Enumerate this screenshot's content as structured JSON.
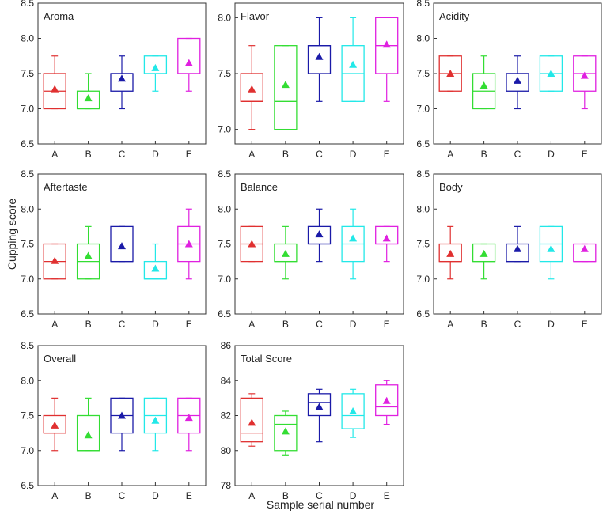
{
  "figure": {
    "y_axis_label": "Cupping score",
    "x_axis_label": "Sample serial number",
    "series_colors": {
      "A": "#e03030",
      "B": "#33dd33",
      "C": "#1a1aa8",
      "D": "#22e8e8",
      "E": "#e020e0"
    }
  },
  "chart_data": [
    {
      "type": "box",
      "title": "Aroma",
      "categories": [
        "A",
        "B",
        "C",
        "D",
        "E"
      ],
      "ylim": [
        6.5,
        8.5
      ],
      "yticks": [
        "6.5",
        "7.0",
        "7.5",
        "8.0",
        "8.5"
      ],
      "boxes": [
        {
          "cat": "A",
          "min": 7.0,
          "q1": 7.0,
          "median": 7.25,
          "q3": 7.5,
          "max": 7.75,
          "mean": 7.28
        },
        {
          "cat": "B",
          "min": 7.0,
          "q1": 7.0,
          "median": 7.0,
          "q3": 7.25,
          "max": 7.5,
          "mean": 7.15
        },
        {
          "cat": "C",
          "min": 7.0,
          "q1": 7.25,
          "median": 7.5,
          "q3": 7.5,
          "max": 7.75,
          "mean": 7.43
        },
        {
          "cat": "D",
          "min": 7.25,
          "q1": 7.5,
          "median": 7.5,
          "q3": 7.75,
          "max": 7.75,
          "mean": 7.58
        },
        {
          "cat": "E",
          "min": 7.25,
          "q1": 7.5,
          "median": 7.5,
          "q3": 8.0,
          "max": 8.0,
          "mean": 7.65
        }
      ]
    },
    {
      "type": "box",
      "title": "Flavor",
      "categories": [
        "A",
        "B",
        "C",
        "D",
        "E"
      ],
      "ylim": [
        6.87,
        8.13
      ],
      "yticks": [
        "7.0",
        "7.5",
        "8.0"
      ],
      "boxes": [
        {
          "cat": "A",
          "min": 7.0,
          "q1": 7.25,
          "median": 7.25,
          "q3": 7.5,
          "max": 7.75,
          "mean": 7.36
        },
        {
          "cat": "B",
          "min": 7.0,
          "q1": 7.0,
          "median": 7.25,
          "q3": 7.75,
          "max": 7.75,
          "mean": 7.4
        },
        {
          "cat": "C",
          "min": 7.25,
          "q1": 7.5,
          "median": 7.75,
          "q3": 7.75,
          "max": 8.0,
          "mean": 7.65
        },
        {
          "cat": "D",
          "min": 7.25,
          "q1": 7.25,
          "median": 7.5,
          "q3": 7.75,
          "max": 8.0,
          "mean": 7.58
        },
        {
          "cat": "E",
          "min": 7.25,
          "q1": 7.5,
          "median": 7.75,
          "q3": 8.0,
          "max": 8.0,
          "mean": 7.76
        }
      ]
    },
    {
      "type": "box",
      "title": "Acidity",
      "categories": [
        "A",
        "B",
        "C",
        "D",
        "E"
      ],
      "ylim": [
        6.5,
        8.5
      ],
      "yticks": [
        "6.5",
        "7.0",
        "7.5",
        "8.0",
        "8.5"
      ],
      "boxes": [
        {
          "cat": "A",
          "min": 7.25,
          "q1": 7.25,
          "median": 7.5,
          "q3": 7.75,
          "max": 7.75,
          "mean": 7.5
        },
        {
          "cat": "B",
          "min": 7.0,
          "q1": 7.0,
          "median": 7.25,
          "q3": 7.5,
          "max": 7.75,
          "mean": 7.33
        },
        {
          "cat": "C",
          "min": 7.0,
          "q1": 7.25,
          "median": 7.5,
          "q3": 7.5,
          "max": 7.75,
          "mean": 7.4
        },
        {
          "cat": "D",
          "min": 7.25,
          "q1": 7.25,
          "median": 7.5,
          "q3": 7.75,
          "max": 7.75,
          "mean": 7.5
        },
        {
          "cat": "E",
          "min": 7.0,
          "q1": 7.25,
          "median": 7.5,
          "q3": 7.75,
          "max": 7.75,
          "mean": 7.47
        }
      ]
    },
    {
      "type": "box",
      "title": "Aftertaste",
      "categories": [
        "A",
        "B",
        "C",
        "D",
        "E"
      ],
      "ylim": [
        6.5,
        8.5
      ],
      "yticks": [
        "6.5",
        "7.0",
        "7.5",
        "8.0",
        "8.5"
      ],
      "boxes": [
        {
          "cat": "A",
          "min": 7.0,
          "q1": 7.0,
          "median": 7.25,
          "q3": 7.5,
          "max": 7.5,
          "mean": 7.26
        },
        {
          "cat": "B",
          "min": 7.0,
          "q1": 7.0,
          "median": 7.25,
          "q3": 7.5,
          "max": 7.75,
          "mean": 7.33
        },
        {
          "cat": "C",
          "min": 7.25,
          "q1": 7.25,
          "median": 7.25,
          "q3": 7.75,
          "max": 7.75,
          "mean": 7.47
        },
        {
          "cat": "D",
          "min": 7.0,
          "q1": 7.0,
          "median": 7.0,
          "q3": 7.25,
          "max": 7.5,
          "mean": 7.15
        },
        {
          "cat": "E",
          "min": 7.0,
          "q1": 7.25,
          "median": 7.5,
          "q3": 7.75,
          "max": 8.0,
          "mean": 7.5
        }
      ]
    },
    {
      "type": "box",
      "title": "Balance",
      "categories": [
        "A",
        "B",
        "C",
        "D",
        "E"
      ],
      "ylim": [
        6.5,
        8.5
      ],
      "yticks": [
        "6.5",
        "7.0",
        "7.5",
        "8.0",
        "8.5"
      ],
      "boxes": [
        {
          "cat": "A",
          "min": 7.25,
          "q1": 7.25,
          "median": 7.5,
          "q3": 7.75,
          "max": 7.75,
          "mean": 7.5
        },
        {
          "cat": "B",
          "min": 7.0,
          "q1": 7.25,
          "median": 7.25,
          "q3": 7.5,
          "max": 7.75,
          "mean": 7.36
        },
        {
          "cat": "C",
          "min": 7.25,
          "q1": 7.5,
          "median": 7.5,
          "q3": 7.75,
          "max": 8.0,
          "mean": 7.64
        },
        {
          "cat": "D",
          "min": 7.0,
          "q1": 7.25,
          "median": 7.5,
          "q3": 7.75,
          "max": 8.0,
          "mean": 7.58
        },
        {
          "cat": "E",
          "min": 7.25,
          "q1": 7.5,
          "median": 7.5,
          "q3": 7.75,
          "max": 7.75,
          "mean": 7.58
        }
      ]
    },
    {
      "type": "box",
      "title": "Body",
      "categories": [
        "A",
        "B",
        "C",
        "D",
        "E"
      ],
      "ylim": [
        6.5,
        8.5
      ],
      "yticks": [
        "6.5",
        "7.0",
        "7.5",
        "8.0",
        "8.5"
      ],
      "boxes": [
        {
          "cat": "A",
          "min": 7.0,
          "q1": 7.25,
          "median": 7.25,
          "q3": 7.5,
          "max": 7.75,
          "mean": 7.36
        },
        {
          "cat": "B",
          "min": 7.0,
          "q1": 7.25,
          "median": 7.25,
          "q3": 7.5,
          "max": 7.5,
          "mean": 7.36
        },
        {
          "cat": "C",
          "min": 7.25,
          "q1": 7.25,
          "median": 7.25,
          "q3": 7.5,
          "max": 7.75,
          "mean": 7.43
        },
        {
          "cat": "D",
          "min": 7.0,
          "q1": 7.25,
          "median": 7.5,
          "q3": 7.75,
          "max": 7.75,
          "mean": 7.43
        },
        {
          "cat": "E",
          "min": 7.25,
          "q1": 7.25,
          "median": 7.25,
          "q3": 7.5,
          "max": 7.5,
          "mean": 7.43
        }
      ]
    },
    {
      "type": "box",
      "title": "Overall",
      "categories": [
        "A",
        "B",
        "C",
        "D",
        "E"
      ],
      "ylim": [
        6.5,
        8.5
      ],
      "yticks": [
        "6.5",
        "7.0",
        "7.5",
        "8.0",
        "8.5"
      ],
      "boxes": [
        {
          "cat": "A",
          "min": 7.0,
          "q1": 7.25,
          "median": 7.25,
          "q3": 7.5,
          "max": 7.75,
          "mean": 7.36
        },
        {
          "cat": "B",
          "min": 7.0,
          "q1": 7.0,
          "median": 7.0,
          "q3": 7.5,
          "max": 7.75,
          "mean": 7.22
        },
        {
          "cat": "C",
          "min": 7.0,
          "q1": 7.25,
          "median": 7.5,
          "q3": 7.75,
          "max": 7.75,
          "mean": 7.5
        },
        {
          "cat": "D",
          "min": 7.0,
          "q1": 7.25,
          "median": 7.5,
          "q3": 7.75,
          "max": 7.75,
          "mean": 7.43
        },
        {
          "cat": "E",
          "min": 7.0,
          "q1": 7.25,
          "median": 7.5,
          "q3": 7.75,
          "max": 7.75,
          "mean": 7.47
        }
      ]
    },
    {
      "type": "box",
      "title": "Total Score",
      "categories": [
        "A",
        "B",
        "C",
        "D",
        "E"
      ],
      "ylim": [
        78,
        86
      ],
      "yticks": [
        "78",
        "80",
        "82",
        "84",
        "86"
      ],
      "boxes": [
        {
          "cat": "A",
          "min": 80.25,
          "q1": 80.5,
          "median": 81.0,
          "q3": 83.0,
          "max": 83.25,
          "mean": 81.6
        },
        {
          "cat": "B",
          "min": 79.75,
          "q1": 80.0,
          "median": 81.5,
          "q3": 82.0,
          "max": 82.25,
          "mean": 81.1
        },
        {
          "cat": "C",
          "min": 80.5,
          "q1": 82.0,
          "median": 82.75,
          "q3": 83.25,
          "max": 83.5,
          "mean": 82.5
        },
        {
          "cat": "D",
          "min": 80.75,
          "q1": 81.25,
          "median": 82.0,
          "q3": 83.25,
          "max": 83.5,
          "mean": 82.25
        },
        {
          "cat": "E",
          "min": 81.5,
          "q1": 82.0,
          "median": 82.5,
          "q3": 83.75,
          "max": 84.0,
          "mean": 82.85
        }
      ]
    }
  ]
}
